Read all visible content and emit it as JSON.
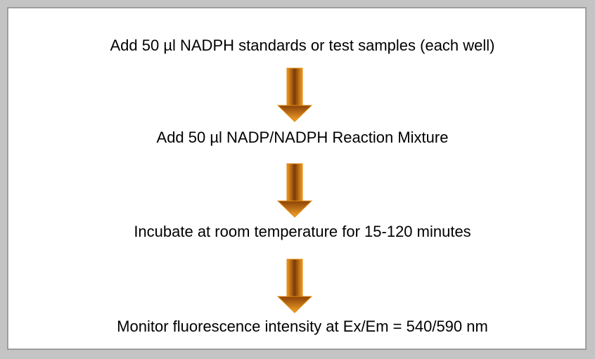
{
  "steps": [
    "Add 50 µl NADPH standards or test samples (each well)",
    "Add 50 µl NADP/NADPH Reaction Mixture",
    "Incubate at room temperature for 15-120 minutes",
    "Monitor fluorescence intensity at Ex/Em = 540/590 nm"
  ]
}
